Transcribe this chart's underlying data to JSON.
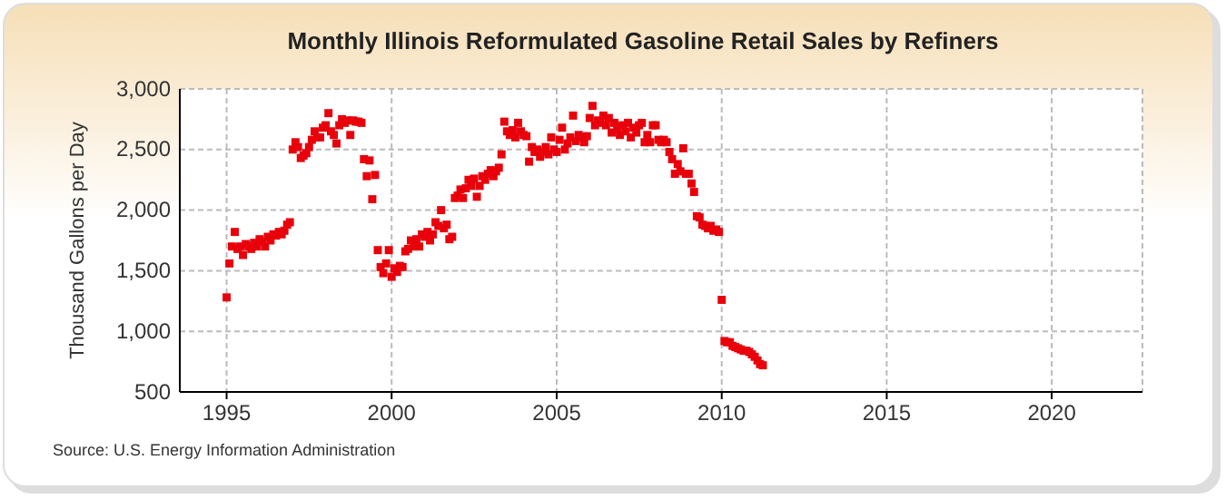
{
  "chart_data": {
    "type": "scatter",
    "title": "Monthly Illinois Reformulated Gasoline Retail Sales by Refiners",
    "ylabel": "Thousand Gallons per Day",
    "annotations": [
      "Source: U.S. Energy Information Administration"
    ],
    "x": [
      "1995-01",
      "1995-02",
      "1995-03",
      "1995-04",
      "1995-05",
      "1995-06",
      "1995-07",
      "1995-08",
      "1995-09",
      "1995-10",
      "1995-11",
      "1995-12",
      "1996-01",
      "1996-02",
      "1996-03",
      "1996-04",
      "1996-05",
      "1996-06",
      "1996-07",
      "1996-08",
      "1996-09",
      "1996-10",
      "1996-11",
      "1996-12",
      "1997-01",
      "1997-02",
      "1997-03",
      "1997-04",
      "1997-05",
      "1997-06",
      "1997-07",
      "1997-08",
      "1997-09",
      "1997-10",
      "1997-11",
      "1997-12",
      "1998-01",
      "1998-02",
      "1998-03",
      "1998-04",
      "1998-05",
      "1998-06",
      "1998-07",
      "1998-08",
      "1998-09",
      "1998-10",
      "1998-11",
      "1998-12",
      "1999-01",
      "1999-02",
      "1999-03",
      "1999-04",
      "1999-05",
      "1999-06",
      "1999-07",
      "1999-08",
      "1999-09",
      "1999-10",
      "1999-11",
      "1999-12",
      "2000-01",
      "2000-02",
      "2000-03",
      "2000-04",
      "2000-05",
      "2000-06",
      "2000-07",
      "2000-08",
      "2000-09",
      "2000-10",
      "2000-11",
      "2000-12",
      "2001-01",
      "2001-02",
      "2001-03",
      "2001-04",
      "2001-05",
      "2001-06",
      "2001-07",
      "2001-08",
      "2001-09",
      "2001-10",
      "2001-11",
      "2001-12",
      "2002-01",
      "2002-02",
      "2002-03",
      "2002-04",
      "2002-05",
      "2002-06",
      "2002-07",
      "2002-08",
      "2002-09",
      "2002-10",
      "2002-11",
      "2002-12",
      "2003-01",
      "2003-02",
      "2003-03",
      "2003-04",
      "2003-05",
      "2003-06",
      "2003-07",
      "2003-08",
      "2003-09",
      "2003-10",
      "2003-11",
      "2003-12",
      "2004-01",
      "2004-02",
      "2004-03",
      "2004-04",
      "2004-05",
      "2004-06",
      "2004-07",
      "2004-08",
      "2004-09",
      "2004-10",
      "2004-11",
      "2004-12",
      "2005-01",
      "2005-02",
      "2005-03",
      "2005-04",
      "2005-05",
      "2005-06",
      "2005-07",
      "2005-08",
      "2005-09",
      "2005-10",
      "2005-11",
      "2005-12",
      "2006-01",
      "2006-02",
      "2006-03",
      "2006-04",
      "2006-05",
      "2006-06",
      "2006-07",
      "2006-08",
      "2006-09",
      "2006-10",
      "2006-11",
      "2006-12",
      "2007-01",
      "2007-02",
      "2007-03",
      "2007-04",
      "2007-05",
      "2007-06",
      "2007-07",
      "2007-08",
      "2007-09",
      "2007-10",
      "2007-11",
      "2007-12",
      "2008-01",
      "2008-02",
      "2008-03",
      "2008-04",
      "2008-05",
      "2008-06",
      "2008-07",
      "2008-08",
      "2008-09",
      "2008-10",
      "2008-11",
      "2008-12",
      "2009-01",
      "2009-02",
      "2009-03",
      "2009-04",
      "2009-05",
      "2009-06",
      "2009-07",
      "2009-08",
      "2009-09",
      "2009-10",
      "2009-11",
      "2009-12",
      "2010-01",
      "2010-02",
      "2010-03",
      "2010-04",
      "2010-05",
      "2010-06",
      "2010-07",
      "2010-08",
      "2010-09",
      "2010-10",
      "2010-11",
      "2010-12",
      "2011-01",
      "2011-02",
      "2011-03",
      "2011-04"
    ],
    "series": [
      {
        "color": "#e8000b",
        "values": [
          1280,
          1560,
          1700,
          1820,
          1680,
          1700,
          1630,
          1720,
          1700,
          1680,
          1730,
          1700,
          1760,
          1740,
          1700,
          1780,
          1750,
          1800,
          1790,
          1820,
          1800,
          1830,
          1880,
          1900,
          2500,
          2560,
          2520,
          2430,
          2450,
          2470,
          2520,
          2580,
          2650,
          2600,
          2600,
          2680,
          2700,
          2800,
          2650,
          2620,
          2550,
          2700,
          2750,
          2720,
          2740,
          2620,
          2740,
          2730,
          2730,
          2720,
          2420,
          2280,
          2410,
          2090,
          2290,
          1670,
          1530,
          1480,
          1560,
          1670,
          1450,
          1520,
          1490,
          1540,
          1530,
          1660,
          1680,
          1750,
          1700,
          1760,
          1700,
          1800,
          1780,
          1820,
          1750,
          1800,
          1900,
          1870,
          2000,
          1850,
          1880,
          1760,
          1780,
          2100,
          2120,
          2170,
          2100,
          2180,
          2250,
          2200,
          2260,
          2110,
          2200,
          2280,
          2250,
          2300,
          2330,
          2280,
          2320,
          2350,
          2460,
          2730,
          2650,
          2620,
          2660,
          2600,
          2720,
          2650,
          2620,
          2610,
          2400,
          2520,
          2480,
          2500,
          2440,
          2480,
          2520,
          2460,
          2600,
          2500,
          2480,
          2580,
          2680,
          2500,
          2550,
          2600,
          2780,
          2570,
          2620,
          2600,
          2560,
          2610,
          2760,
          2860,
          2700,
          2740,
          2720,
          2780,
          2700,
          2760,
          2640,
          2720,
          2680,
          2620,
          2700,
          2650,
          2720,
          2600,
          2680,
          2640,
          2700,
          2720,
          2560,
          2620,
          2560,
          2700,
          2700,
          2580,
          2560,
          2580,
          2560,
          2480,
          2420,
          2300,
          2380,
          2320,
          2510,
          2300,
          2300,
          2220,
          2150,
          1950,
          1940,
          1880,
          1870,
          1850,
          1870,
          1830,
          1840,
          1820,
          1260,
          920,
          910,
          910,
          880,
          870,
          860,
          850,
          840,
          840,
          830,
          810,
          790,
          760,
          730,
          720
        ]
      }
    ],
    "xlim": [
      "1993-08",
      "2022-10"
    ],
    "xticks": [
      {
        "value": "1995",
        "label": "1995"
      },
      {
        "value": "2000",
        "label": "2000"
      },
      {
        "value": "2005",
        "label": "2005"
      },
      {
        "value": "2010",
        "label": "2010"
      },
      {
        "value": "2015",
        "label": "2015"
      },
      {
        "value": "2020",
        "label": "2020"
      }
    ],
    "ylim": [
      500,
      3000
    ],
    "yticks": [
      {
        "value": 500,
        "label": "500"
      },
      {
        "value": 1000,
        "label": "1,000"
      },
      {
        "value": 1500,
        "label": "1,500"
      },
      {
        "value": 2000,
        "label": "2,000"
      },
      {
        "value": 2500,
        "label": "2,500"
      },
      {
        "value": 3000,
        "label": "3,000"
      }
    ],
    "grid": true,
    "marker": "square"
  }
}
